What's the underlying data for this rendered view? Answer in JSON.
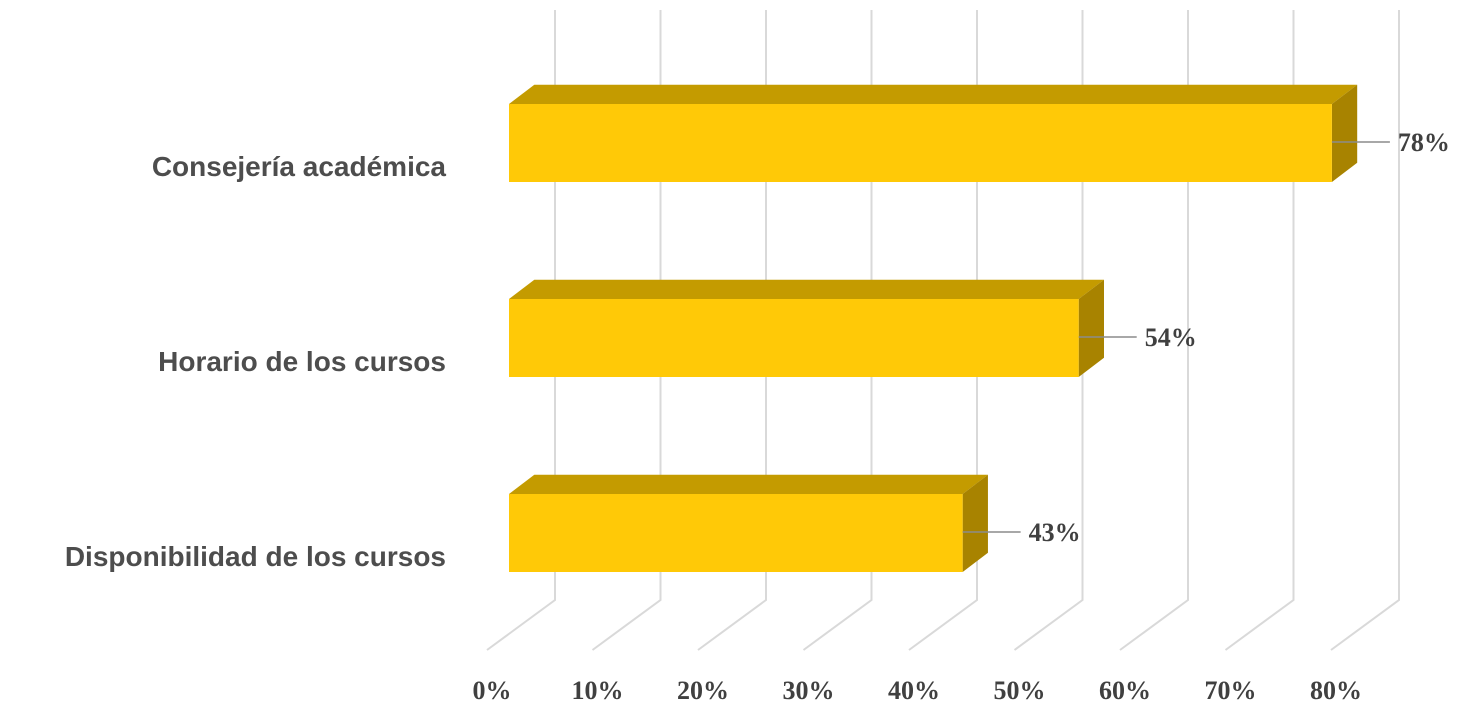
{
  "chart_data": {
    "type": "bar",
    "orientation": "horizontal",
    "style": "3d",
    "categories": [
      "Consejería académica",
      "Horario de los cursos",
      "Disponibilidad de los cursos"
    ],
    "values": [
      78,
      54,
      43
    ],
    "data_labels": [
      "78%",
      "54%",
      "43%"
    ],
    "xlim": [
      0,
      80
    ],
    "x_ticks": [
      "0%",
      "10%",
      "20%",
      "30%",
      "40%",
      "50%",
      "60%",
      "70%",
      "80%"
    ],
    "grid": true,
    "legend": "none",
    "colors": {
      "bar_front": "#FFC907",
      "bar_top": "#C49B00",
      "bar_side": "#A88300"
    }
  }
}
